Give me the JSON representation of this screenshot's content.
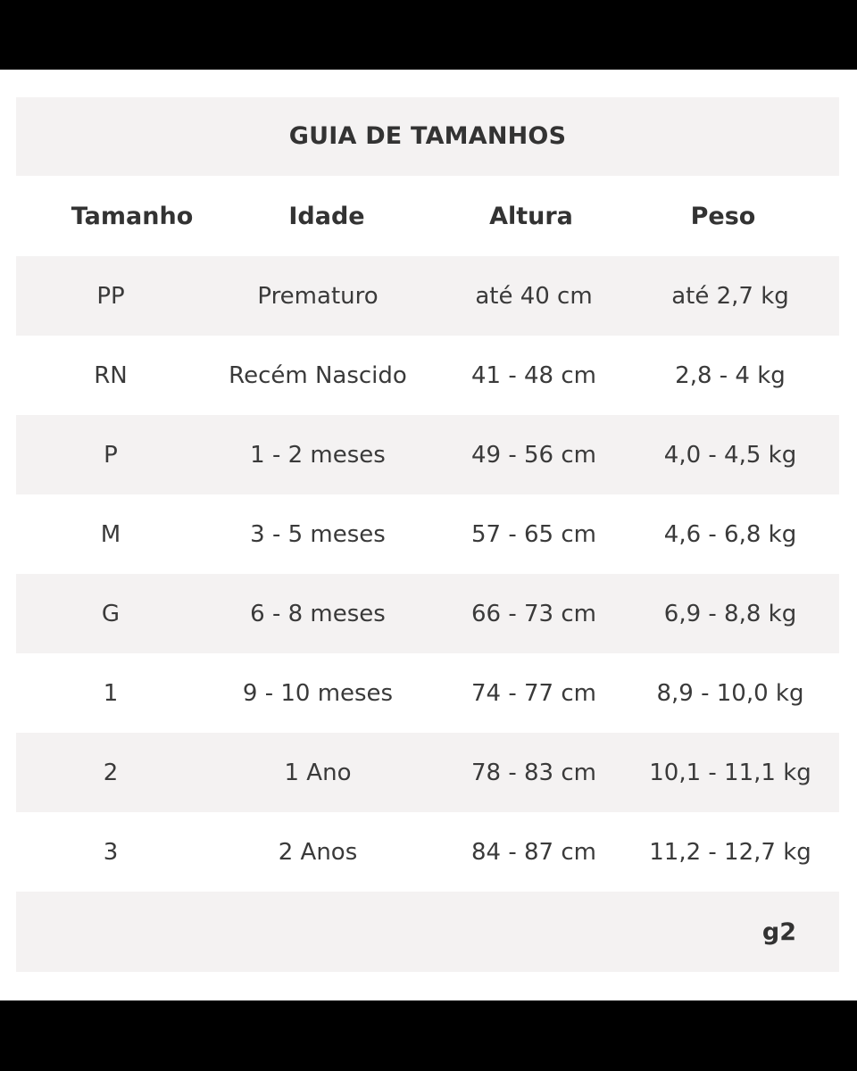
{
  "title": "GUIA DE TAMANHOS",
  "headers": [
    "Tamanho",
    "Idade",
    "Altura",
    "Peso"
  ],
  "rows": [
    [
      "PP",
      "Prematuro",
      "até 40 cm",
      "até 2,7 kg"
    ],
    [
      "RN",
      "Recém Nascido",
      "41 - 48 cm",
      "2,8 - 4 kg"
    ],
    [
      "P",
      "1 - 2 meses",
      "49 - 56 cm",
      "4,0 - 4,5 kg"
    ],
    [
      "M",
      "3 - 5 meses",
      "57 - 65 cm",
      "4,6 - 6,8 kg"
    ],
    [
      "G",
      "6 - 8 meses",
      "66 - 73 cm",
      "6,9 - 8,8 kg"
    ],
    [
      "1",
      "9 - 10 meses",
      "74 - 77 cm",
      "8,9 - 10,0 kg"
    ],
    [
      "2",
      "1  Ano",
      "78 - 83 cm",
      "10,1 - 11,1 kg"
    ],
    [
      "3",
      "2 Anos",
      "84 - 87 cm",
      "11,2 - 12,7 kg"
    ]
  ],
  "footer_code": "g2",
  "colors": {
    "frame": "#000000",
    "sheet": "#ffffff",
    "shaded_row": "#f4f2f2",
    "text": "#3a3a3a"
  }
}
